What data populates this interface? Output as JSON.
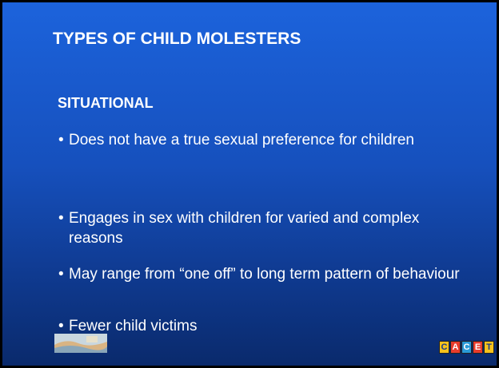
{
  "slide": {
    "title": "TYPES OF CHILD MOLESTERS",
    "subtitle": "SITUATIONAL",
    "bullets": [
      "Does not have a true sexual preference for children",
      "Engages in sex with children for varied and complex reasons",
      "May range from “one off” to long term pattern of behaviour",
      "Fewer child victims"
    ],
    "logo_letters": [
      "C",
      "A",
      "C",
      "E",
      "T"
    ]
  }
}
